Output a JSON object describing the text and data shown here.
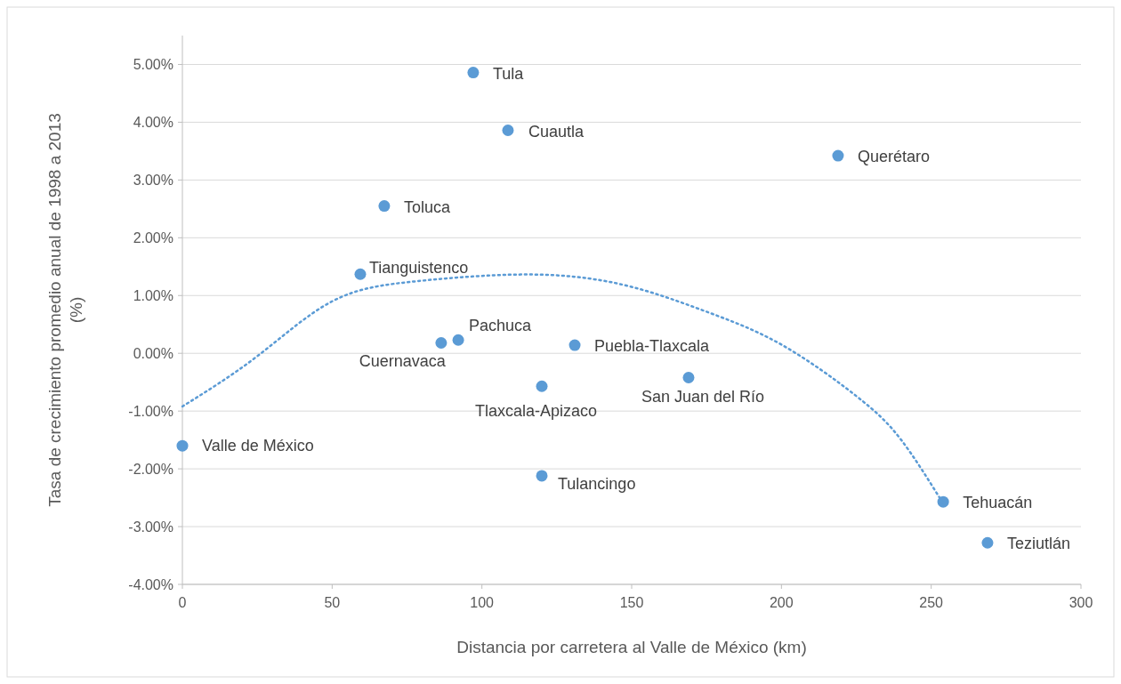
{
  "chart_data": {
    "type": "scatter",
    "xlabel": "Distancia por carretera al Valle de México (km)",
    "ylabel": "Tasa de crecimiento promedio anual de 1998 a 2013 (%)",
    "xlim": [
      0,
      300
    ],
    "xticks": [
      0,
      50,
      100,
      150,
      200,
      250,
      300
    ],
    "ylim": [
      -4,
      5.5
    ],
    "yticks": [
      {
        "value": -4,
        "label": "-4.00%"
      },
      {
        "value": -3,
        "label": "-3.00%"
      },
      {
        "value": -2,
        "label": "-2.00%"
      },
      {
        "value": -1,
        "label": "-1.00%"
      },
      {
        "value": 0,
        "label": "0.00%"
      },
      {
        "value": 1,
        "label": "1.00%"
      },
      {
        "value": 2,
        "label": "2.00%"
      },
      {
        "value": 3,
        "label": "3.00%"
      },
      {
        "value": 4,
        "label": "4.00%"
      },
      {
        "value": 5,
        "label": "5.00%"
      }
    ],
    "grid": "y",
    "series": [
      {
        "marker": "circle",
        "color": "#5b9bd5",
        "x": [
          0,
          59.4,
          67.4,
          86.4,
          92.1,
          97.1,
          108.7,
          120,
          120,
          131,
          169,
          218.9,
          254,
          268.8
        ],
        "values": [
          -1.6,
          1.37,
          2.55,
          0.18,
          0.23,
          4.86,
          3.86,
          -0.57,
          -2.12,
          0.14,
          -0.42,
          3.42,
          -2.57,
          -3.28
        ]
      },
      {
        "type": "line",
        "color": "#5b9bd5",
        "line_style": "dotted",
        "x": [
          0,
          25,
          50,
          75,
          100,
          125,
          150,
          175,
          200,
          225,
          240,
          254
        ],
        "values": [
          -0.92,
          -0.05,
          0.9,
          1.23,
          1.34,
          1.35,
          1.15,
          0.72,
          0.15,
          -0.74,
          -1.5,
          -2.6
        ]
      }
    ],
    "annotations": [
      {
        "text": "Valle de México",
        "x": 0,
        "y": -1.6
      },
      {
        "text": "Tianguistenco",
        "x": 59.4,
        "y": 1.37
      },
      {
        "text": "Toluca",
        "x": 67.4,
        "y": 2.55
      },
      {
        "text": "Cuernavaca",
        "x": 86.4,
        "y": 0.18
      },
      {
        "text": "Pachuca",
        "x": 92.1,
        "y": 0.23
      },
      {
        "text": "Tula",
        "x": 97.1,
        "y": 4.86
      },
      {
        "text": "Cuautla",
        "x": 108.7,
        "y": 3.86
      },
      {
        "text": "Tlaxcala-Apizaco",
        "x": 120,
        "y": -0.57
      },
      {
        "text": "Tulancingo",
        "x": 120,
        "y": -2.12
      },
      {
        "text": "Puebla-Tlaxcala",
        "x": 131,
        "y": 0.14
      },
      {
        "text": "San Juan del Río",
        "x": 169,
        "y": -0.42
      },
      {
        "text": "Querétaro",
        "x": 218.9,
        "y": 3.42
      },
      {
        "text": "Tehuacán",
        "x": 254,
        "y": -2.57
      },
      {
        "text": "Teziutlán",
        "x": 268.8,
        "y": -3.28
      }
    ]
  }
}
